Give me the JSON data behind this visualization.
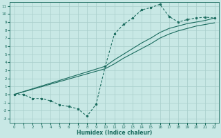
{
  "xlabel": "Humidex (Indice chaleur)",
  "xlim": [
    -0.5,
    22.5
  ],
  "ylim": [
    -3.5,
    11.5
  ],
  "xticks": [
    0,
    1,
    2,
    3,
    4,
    5,
    6,
    7,
    8,
    9,
    10,
    11,
    12,
    13,
    14,
    15,
    16,
    17,
    18,
    19,
    20,
    21,
    22
  ],
  "yticks": [
    -3,
    -2,
    -1,
    0,
    1,
    2,
    3,
    4,
    5,
    6,
    7,
    8,
    9,
    10,
    11
  ],
  "bg_color": "#c8e8e5",
  "grid_color": "#a8ceca",
  "line_color": "#1a6b5e",
  "line1_x": [
    0,
    1,
    2,
    3,
    4,
    5,
    6,
    7,
    8,
    9,
    10,
    11,
    12,
    13,
    14,
    15,
    16,
    17,
    18,
    19,
    20,
    21,
    22
  ],
  "line1_y": [
    0,
    0,
    -0.5,
    -0.5,
    -0.8,
    -1.3,
    -1.5,
    -1.8,
    -2.7,
    -1.2,
    3.5,
    7.5,
    8.7,
    9.5,
    10.5,
    10.8,
    11.2,
    9.7,
    9.0,
    9.3,
    9.5,
    9.6,
    9.5
  ],
  "line2_x": [
    0,
    10,
    11,
    12,
    13,
    14,
    15,
    16,
    17,
    18,
    19,
    20,
    21,
    22
  ],
  "line2_y": [
    0,
    3.5,
    4.3,
    5.0,
    5.7,
    6.4,
    7.0,
    7.7,
    8.2,
    8.5,
    8.8,
    9.0,
    9.2,
    9.5
  ],
  "line3_x": [
    0,
    10,
    11,
    12,
    13,
    14,
    15,
    16,
    17,
    18,
    19,
    20,
    21,
    22
  ],
  "line3_y": [
    0,
    3.2,
    3.8,
    4.5,
    5.1,
    5.7,
    6.3,
    7.0,
    7.5,
    7.9,
    8.2,
    8.5,
    8.7,
    8.9
  ],
  "figsize": [
    3.2,
    2.0
  ],
  "dpi": 100
}
